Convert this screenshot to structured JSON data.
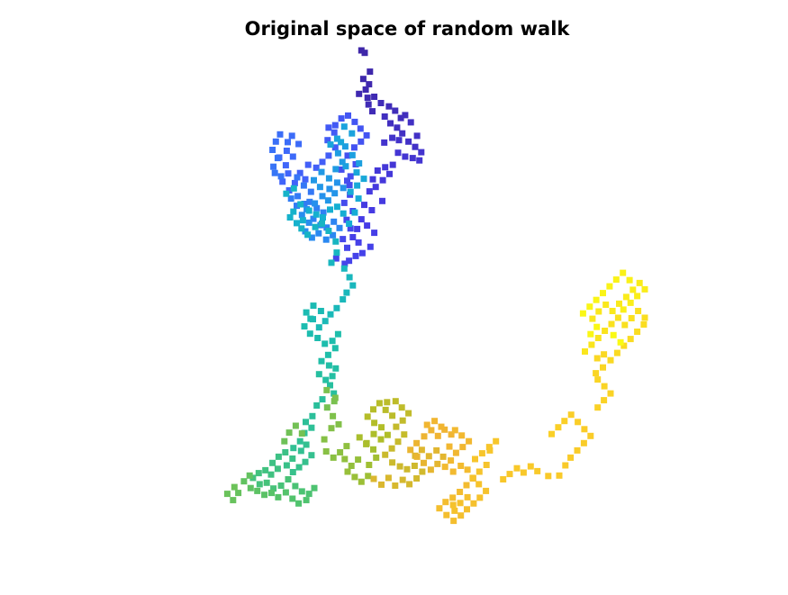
{
  "chart_data": {
    "type": "scatter",
    "title": "Original space of random walk",
    "xlabel": "",
    "ylabel": "",
    "axes_visible": false,
    "grid": false,
    "legend": "none",
    "colormap": "parula",
    "marker": "square",
    "xlim": [
      0,
      100
    ],
    "ylim": [
      0,
      100
    ],
    "points": [
      [
        40.4,
        98.5
      ],
      [
        41.1,
        98.0
      ],
      [
        42.2,
        94.1
      ],
      [
        40.8,
        92.6
      ],
      [
        42.0,
        91.5
      ],
      [
        41.3,
        90.4
      ],
      [
        39.9,
        89.5
      ],
      [
        41.7,
        88.7
      ],
      [
        43.1,
        88.9
      ],
      [
        41.9,
        87.3
      ],
      [
        42.7,
        85.9
      ],
      [
        44.5,
        87.6
      ],
      [
        46.2,
        86.9
      ],
      [
        47.5,
        86.0
      ],
      [
        48.7,
        84.5
      ],
      [
        49.6,
        85.1
      ],
      [
        46.5,
        83.4
      ],
      [
        45.3,
        84.8
      ],
      [
        47.9,
        82.5
      ],
      [
        50.8,
        83.6
      ],
      [
        49.0,
        81.3
      ],
      [
        52.1,
        80.8
      ],
      [
        50.3,
        79.6
      ],
      [
        51.7,
        78.5
      ],
      [
        48.3,
        79.9
      ],
      [
        46.9,
        80.4
      ],
      [
        45.2,
        79.4
      ],
      [
        53.0,
        77.4
      ],
      [
        51.2,
        76.2
      ],
      [
        52.6,
        75.7
      ],
      [
        49.6,
        76.5
      ],
      [
        48.1,
        77.3
      ],
      [
        47.0,
        74.8
      ],
      [
        45.4,
        74.3
      ],
      [
        43.8,
        73.6
      ],
      [
        46.3,
        72.9
      ],
      [
        44.9,
        71.6
      ],
      [
        42.8,
        71.8
      ],
      [
        43.4,
        70.2
      ],
      [
        42.1,
        69.3
      ],
      [
        44.8,
        67.3
      ],
      [
        41.0,
        66.5
      ],
      [
        42.6,
        65.4
      ],
      [
        40.4,
        63.5
      ],
      [
        41.6,
        62.2
      ],
      [
        39.5,
        61.5
      ],
      [
        43.1,
        60.7
      ],
      [
        38.6,
        59.8
      ],
      [
        39.8,
        58.7
      ],
      [
        42.3,
        57.8
      ],
      [
        40.6,
        56.5
      ],
      [
        39.2,
        55.9
      ],
      [
        37.8,
        54.9
      ],
      [
        36.9,
        54.3
      ],
      [
        35.1,
        55.4
      ],
      [
        37.4,
        57.6
      ],
      [
        36.5,
        59.4
      ],
      [
        38.1,
        61.6
      ],
      [
        37.3,
        63.4
      ],
      [
        38.6,
        65.2
      ],
      [
        36.8,
        66.9
      ],
      [
        38.0,
        68.6
      ],
      [
        37.9,
        70.6
      ],
      [
        37.4,
        71.5
      ],
      [
        36.2,
        73.8
      ],
      [
        38.1,
        72.4
      ],
      [
        39.2,
        74.9
      ],
      [
        37.5,
        76.7
      ],
      [
        38.9,
        78.4
      ],
      [
        40.3,
        79.6
      ],
      [
        41.5,
        80.9
      ],
      [
        40.2,
        82.3
      ],
      [
        39.0,
        83.7
      ],
      [
        37.6,
        85.0
      ],
      [
        36.2,
        84.4
      ],
      [
        34.9,
        83.0
      ],
      [
        33.5,
        82.5
      ],
      [
        34.7,
        81.5
      ],
      [
        33.3,
        79.9
      ],
      [
        34.9,
        78.4
      ],
      [
        33.5,
        76.7
      ],
      [
        32.2,
        75.4
      ],
      [
        30.9,
        74.2
      ],
      [
        29.2,
        74.8
      ],
      [
        27.5,
        73.1
      ],
      [
        28.6,
        71.8
      ],
      [
        26.4,
        71.0
      ],
      [
        25.2,
        69.5
      ],
      [
        23.8,
        71.3
      ],
      [
        25.0,
        73.0
      ],
      [
        24.5,
        74.7
      ],
      [
        23.1,
        76.3
      ],
      [
        24.7,
        77.7
      ],
      [
        26.0,
        76.5
      ],
      [
        27.2,
        79.1
      ],
      [
        25.8,
        80.8
      ],
      [
        24.9,
        79.5
      ],
      [
        23.3,
        81.1
      ],
      [
        22.4,
        79.6
      ],
      [
        21.7,
        77.9
      ],
      [
        22.8,
        76.2
      ],
      [
        21.9,
        74.4
      ],
      [
        23.5,
        72.4
      ],
      [
        22.2,
        73.1
      ],
      [
        26.9,
        72.2
      ],
      [
        28.3,
        70.5
      ],
      [
        29.8,
        69.2
      ],
      [
        27.0,
        68.3
      ],
      [
        28.4,
        66.7
      ],
      [
        26.8,
        66.3
      ],
      [
        25.6,
        67.8
      ],
      [
        29.5,
        67.1
      ],
      [
        31.0,
        65.8
      ],
      [
        32.4,
        64.9
      ],
      [
        30.3,
        63.6
      ],
      [
        31.8,
        62.3
      ],
      [
        33.1,
        61.8
      ],
      [
        34.6,
        63.0
      ],
      [
        35.8,
        61.7
      ],
      [
        34.4,
        60.2
      ],
      [
        33.0,
        59.3
      ],
      [
        31.4,
        60.6
      ],
      [
        30.0,
        59.7
      ],
      [
        28.6,
        61.0
      ],
      [
        29.4,
        62.8
      ],
      [
        27.9,
        64.4
      ],
      [
        28.9,
        65.6
      ],
      [
        30.6,
        66.8
      ],
      [
        32.2,
        68.3
      ],
      [
        33.7,
        69.8
      ],
      [
        35.3,
        71.1
      ],
      [
        36.6,
        70.0
      ],
      [
        34.8,
        68.9
      ],
      [
        33.4,
        67.4
      ],
      [
        31.7,
        70.2
      ],
      [
        30.4,
        71.6
      ],
      [
        32.0,
        73.3
      ],
      [
        33.6,
        72.0
      ],
      [
        35.0,
        73.9
      ],
      [
        36.4,
        75.4
      ],
      [
        35.5,
        77.2
      ],
      [
        37.0,
        78.6
      ],
      [
        38.5,
        76.8
      ],
      [
        39.9,
        75.1
      ],
      [
        37.1,
        74.5
      ],
      [
        38.4,
        81.3
      ],
      [
        36.8,
        82.7
      ],
      [
        35.3,
        80.2
      ],
      [
        33.9,
        79.0
      ],
      [
        36.1,
        79.5
      ],
      [
        39.4,
        73.2
      ],
      [
        40.9,
        71.9
      ],
      [
        39.5,
        70.5
      ],
      [
        38.1,
        69.2
      ],
      [
        39.8,
        67.8
      ],
      [
        39.0,
        64.9
      ],
      [
        37.8,
        62.6
      ],
      [
        36.6,
        64.7
      ],
      [
        35.3,
        66.1
      ],
      [
        33.8,
        65.5
      ],
      [
        32.3,
        63.9
      ],
      [
        30.9,
        64.5
      ],
      [
        29.4,
        65.3
      ],
      [
        28.1,
        63.3
      ],
      [
        26.8,
        62.7
      ],
      [
        25.4,
        63.9
      ],
      [
        26.1,
        65.1
      ],
      [
        27.6,
        66.6
      ],
      [
        24.6,
        68.8
      ],
      [
        26.2,
        69.9
      ],
      [
        27.8,
        61.6
      ],
      [
        29.1,
        60.3
      ],
      [
        30.7,
        61.9
      ],
      [
        32.1,
        62.6
      ],
      [
        33.5,
        61.1
      ],
      [
        35.0,
        58.9
      ],
      [
        35.2,
        56.6
      ],
      [
        34.1,
        54.5
      ],
      [
        36.8,
        53.3
      ],
      [
        37.9,
        51.5
      ],
      [
        38.6,
        49.8
      ],
      [
        37.3,
        48.3
      ],
      [
        36.5,
        46.9
      ],
      [
        35.2,
        45.1
      ],
      [
        33.9,
        43.8
      ],
      [
        32.8,
        42.4
      ],
      [
        31.5,
        41.1
      ],
      [
        30.2,
        42.8
      ],
      [
        31.9,
        44.5
      ],
      [
        30.3,
        45.6
      ],
      [
        28.8,
        44.2
      ],
      [
        29.7,
        42.9
      ],
      [
        28.4,
        41.3
      ],
      [
        29.6,
        39.8
      ],
      [
        31.2,
        38.9
      ],
      [
        32.7,
        37.7
      ],
      [
        34.3,
        38.3
      ],
      [
        35.5,
        39.7
      ],
      [
        34.9,
        36.8
      ],
      [
        33.4,
        35.4
      ],
      [
        32.0,
        34.1
      ],
      [
        33.6,
        33.2
      ],
      [
        35.0,
        32.6
      ],
      [
        34.3,
        31.0
      ],
      [
        32.9,
        30.2
      ],
      [
        31.5,
        31.4
      ],
      [
        33.8,
        29.1
      ],
      [
        34.6,
        27.4
      ],
      [
        32.2,
        26.2
      ],
      [
        31.0,
        24.9
      ],
      [
        30.1,
        22.7
      ],
      [
        28.7,
        21.5
      ],
      [
        29.9,
        20.3
      ],
      [
        28.4,
        19.2
      ],
      [
        27.5,
        17.5
      ],
      [
        26.1,
        16.1
      ],
      [
        27.7,
        15.5
      ],
      [
        28.8,
        16.8
      ],
      [
        29.9,
        14.6
      ],
      [
        28.6,
        13.2
      ],
      [
        27.3,
        12.1
      ],
      [
        26.0,
        11.1
      ],
      [
        24.7,
        12.5
      ],
      [
        25.9,
        13.9
      ],
      [
        24.4,
        15.2
      ],
      [
        23.0,
        14.3
      ],
      [
        21.7,
        13.0
      ],
      [
        22.8,
        11.8
      ],
      [
        21.4,
        10.6
      ],
      [
        20.2,
        11.5
      ],
      [
        18.8,
        10.9
      ],
      [
        17.6,
        9.9
      ],
      [
        19.0,
        8.6
      ],
      [
        20.5,
        8.9
      ],
      [
        21.9,
        7.7
      ],
      [
        23.5,
        8.3
      ],
      [
        25.0,
        9.6
      ],
      [
        26.5,
        8.2
      ],
      [
        27.9,
        7.1
      ],
      [
        29.4,
        6.6
      ],
      [
        30.5,
        7.8
      ],
      [
        28.8,
        5.3
      ],
      [
        27.2,
        4.6
      ],
      [
        25.9,
        5.6
      ],
      [
        24.5,
        6.9
      ],
      [
        22.9,
        5.9
      ],
      [
        21.5,
        6.8
      ],
      [
        20.0,
        6.4
      ],
      [
        18.5,
        7.2
      ],
      [
        17.1,
        7.8
      ],
      [
        15.7,
        9.2
      ],
      [
        16.9,
        10.4
      ],
      [
        14.5,
        6.8
      ],
      [
        13.4,
        5.3
      ],
      [
        12.2,
        6.6
      ],
      [
        13.7,
        8.0
      ],
      [
        24.2,
        17.5
      ],
      [
        25.2,
        19.3
      ],
      [
        26.6,
        20.7
      ],
      [
        27.9,
        19.1
      ],
      [
        33.2,
        24.5
      ],
      [
        34.7,
        25.8
      ],
      [
        33.1,
        28.1
      ],
      [
        34.9,
        26.5
      ],
      [
        34.4,
        22.7
      ],
      [
        35.6,
        21.0
      ],
      [
        34.1,
        20.2
      ],
      [
        32.6,
        17.9
      ],
      [
        33.0,
        15.4
      ],
      [
        34.5,
        14.1
      ],
      [
        35.9,
        15.2
      ],
      [
        37.3,
        16.5
      ],
      [
        36.9,
        13.8
      ],
      [
        38.3,
        12.4
      ],
      [
        39.7,
        13.7
      ],
      [
        37.5,
        11.2
      ],
      [
        39.0,
        10.1
      ],
      [
        40.4,
        9.1
      ],
      [
        41.8,
        10.3
      ],
      [
        42.0,
        12.6
      ],
      [
        43.5,
        14.1
      ],
      [
        42.9,
        15.8
      ],
      [
        41.4,
        16.9
      ],
      [
        40.0,
        18.3
      ],
      [
        41.5,
        17.1
      ],
      [
        43.0,
        19.0
      ],
      [
        44.5,
        17.9
      ],
      [
        45.9,
        18.8
      ],
      [
        44.6,
        20.4
      ],
      [
        43.1,
        21.3
      ],
      [
        41.7,
        22.6
      ],
      [
        42.9,
        24.1
      ],
      [
        44.2,
        25.4
      ],
      [
        45.5,
        24.0
      ],
      [
        46.9,
        22.8
      ],
      [
        45.8,
        25.6
      ],
      [
        47.6,
        25.8
      ],
      [
        48.9,
        24.5
      ],
      [
        50.3,
        23.3
      ],
      [
        49.1,
        21.8
      ],
      [
        47.7,
        20.5
      ],
      [
        49.4,
        18.9
      ],
      [
        48.1,
        17.4
      ],
      [
        46.8,
        16.0
      ],
      [
        45.4,
        14.7
      ],
      [
        46.9,
        13.1
      ],
      [
        48.5,
        12.3
      ],
      [
        50.0,
        11.7
      ],
      [
        51.6,
        12.4
      ],
      [
        53.2,
        11.2
      ],
      [
        52.0,
        9.8
      ],
      [
        50.5,
        8.6
      ],
      [
        49.1,
        9.5
      ],
      [
        47.5,
        8.3
      ],
      [
        46.1,
        9.9
      ],
      [
        44.6,
        8.5
      ],
      [
        43.0,
        9.7
      ],
      [
        51.7,
        14.5
      ],
      [
        53.1,
        15.7
      ],
      [
        54.6,
        14.4
      ],
      [
        56.2,
        15.6
      ],
      [
        57.6,
        14.3
      ],
      [
        56.4,
        12.8
      ],
      [
        55.0,
        11.6
      ],
      [
        53.5,
        13.0
      ],
      [
        52.1,
        14.3
      ],
      [
        50.7,
        15.7
      ],
      [
        52.0,
        17.1
      ],
      [
        53.6,
        18.5
      ],
      [
        55.1,
        19.8
      ],
      [
        56.5,
        18.6
      ],
      [
        57.9,
        19.9
      ],
      [
        59.3,
        18.9
      ],
      [
        57.2,
        20.5
      ],
      [
        55.8,
        21.7
      ],
      [
        54.2,
        20.9
      ],
      [
        58.9,
        16.4
      ],
      [
        60.3,
        15.1
      ],
      [
        61.7,
        16.3
      ],
      [
        63.0,
        17.5
      ],
      [
        61.5,
        18.7
      ],
      [
        60.1,
        19.8
      ],
      [
        59.2,
        13.5
      ],
      [
        58.0,
        12.2
      ],
      [
        59.7,
        11.2
      ],
      [
        61.3,
        12.4
      ],
      [
        62.7,
        11.6
      ],
      [
        63.9,
        9.8
      ],
      [
        62.5,
        8.4
      ],
      [
        61.1,
        7.0
      ],
      [
        59.6,
        5.8
      ],
      [
        58.1,
        4.9
      ],
      [
        56.8,
        3.6
      ],
      [
        58.3,
        2.2
      ],
      [
        59.8,
        1.0
      ],
      [
        61.3,
        2.1
      ],
      [
        62.6,
        3.4
      ],
      [
        64.0,
        4.6
      ],
      [
        62.7,
        5.9
      ],
      [
        61.2,
        4.7
      ],
      [
        60.0,
        3.1
      ],
      [
        59.7,
        4.3
      ],
      [
        65.3,
        5.8
      ],
      [
        66.6,
        7.2
      ],
      [
        65.1,
        8.6
      ],
      [
        63.8,
        9.9
      ],
      [
        65.2,
        11.2
      ],
      [
        66.7,
        12.6
      ],
      [
        64.3,
        13.8
      ],
      [
        65.8,
        15.0
      ],
      [
        67.3,
        16.3
      ],
      [
        68.7,
        17.5
      ],
      [
        67.4,
        15.6
      ],
      [
        70.2,
        9.6
      ],
      [
        71.6,
        10.7
      ],
      [
        73.1,
        11.9
      ],
      [
        74.5,
        11.0
      ],
      [
        76.0,
        12.3
      ],
      [
        77.4,
        11.3
      ],
      [
        79.7,
        10.3
      ],
      [
        82.0,
        10.4
      ],
      [
        83.3,
        12.5
      ],
      [
        84.4,
        14.1
      ],
      [
        85.8,
        15.6
      ],
      [
        87.2,
        17.1
      ],
      [
        88.6,
        18.6
      ],
      [
        87.3,
        20.0
      ],
      [
        85.9,
        21.5
      ],
      [
        84.5,
        23.0
      ],
      [
        83.1,
        21.7
      ],
      [
        81.8,
        20.4
      ],
      [
        80.4,
        19.0
      ],
      [
        90.1,
        24.5
      ],
      [
        91.4,
        26.0
      ],
      [
        92.8,
        27.4
      ],
      [
        91.5,
        28.9
      ],
      [
        90.1,
        30.3
      ],
      [
        89.7,
        31.6
      ],
      [
        91.2,
        32.8
      ],
      [
        90.0,
        34.7
      ],
      [
        91.4,
        35.5
      ],
      [
        92.8,
        34.3
      ],
      [
        94.2,
        35.8
      ],
      [
        95.6,
        37.3
      ],
      [
        97.0,
        38.7
      ],
      [
        98.4,
        40.2
      ],
      [
        99.8,
        41.7
      ],
      [
        100.0,
        43.1
      ],
      [
        98.6,
        44.5
      ],
      [
        97.2,
        43.0
      ],
      [
        95.8,
        41.6
      ],
      [
        94.4,
        43.1
      ],
      [
        93.0,
        41.8
      ],
      [
        91.6,
        40.4
      ],
      [
        90.2,
        38.9
      ],
      [
        88.8,
        37.5
      ],
      [
        87.4,
        36.1
      ],
      [
        89.0,
        42.9
      ],
      [
        90.3,
        44.4
      ],
      [
        91.8,
        45.8
      ],
      [
        93.2,
        44.5
      ],
      [
        94.6,
        46.0
      ],
      [
        96.1,
        47.4
      ],
      [
        97.5,
        48.9
      ],
      [
        98.9,
        50.3
      ],
      [
        100.0,
        49.0
      ],
      [
        98.4,
        47.6
      ],
      [
        97.0,
        46.2
      ],
      [
        95.5,
        44.8
      ],
      [
        96.8,
        50.9
      ],
      [
        95.4,
        52.4
      ],
      [
        94.0,
        51.0
      ],
      [
        92.6,
        49.6
      ],
      [
        91.2,
        48.2
      ],
      [
        89.8,
        46.8
      ],
      [
        88.4,
        45.4
      ],
      [
        87.0,
        44.0
      ],
      [
        88.6,
        39.7
      ],
      [
        89.9,
        41.2
      ],
      [
        93.4,
        39.5
      ],
      [
        94.9,
        38.0
      ]
    ]
  }
}
